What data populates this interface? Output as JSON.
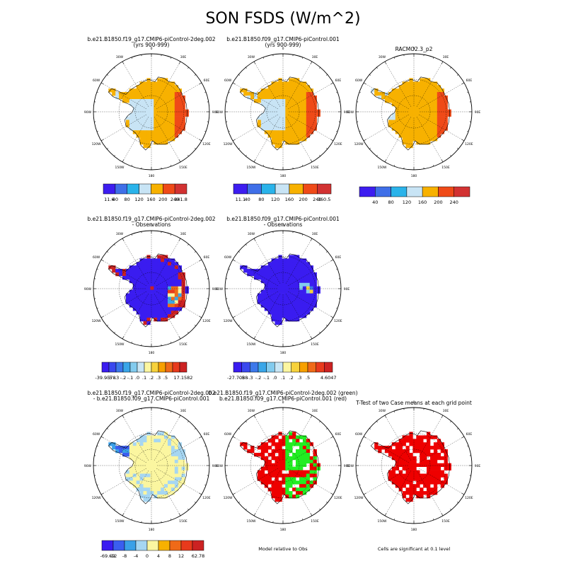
{
  "title": "SON FSDS (W/m^2)",
  "colors": {
    "land_fill": "#ffffff",
    "ocean_fill": "#ffffff",
    "significant": "#ee0000",
    "green": "#22ee22",
    "coast": "#000000"
  },
  "chart_data": [
    {
      "type": "heatmap",
      "title": "b.e21.B1850.f19_g17.CMIP6-piControl-2deg.002",
      "subtitle": "(yrs 900-999)",
      "map": "south-polar-stereographic",
      "lon_labels": [
        "0",
        "30E",
        "60E",
        "90E",
        "120E",
        "150E",
        "180",
        "150W",
        "120W",
        "90W",
        "60W",
        "30W"
      ],
      "colorbar": {
        "min_label": "11.6",
        "max_label": "341.8",
        "ticks": [
          "40",
          "80",
          "120",
          "160",
          "200",
          "240"
        ],
        "colors": [
          "#3d1df0",
          "#3f6fe8",
          "#2ab3ea",
          "#c8e4f5",
          "#f7b100",
          "#ef4a18",
          "#d23232"
        ]
      },
      "pattern": "model"
    },
    {
      "type": "heatmap",
      "title": "b.e21.B1850.f09_g17.CMIP6-piControl.001",
      "subtitle": "(yrs 900-999)",
      "map": "south-polar-stereographic",
      "lon_labels": [
        "0",
        "30E",
        "60E",
        "90E",
        "120E",
        "150E",
        "180",
        "150W",
        "120W",
        "90W",
        "60W",
        "30W"
      ],
      "colorbar": {
        "min_label": "11.1",
        "max_label": "360.5",
        "ticks": [
          "40",
          "80",
          "120",
          "160",
          "200",
          "240"
        ],
        "colors": [
          "#3d1df0",
          "#3f6fe8",
          "#2ab3ea",
          "#c8e4f5",
          "#f7b100",
          "#ef4a18",
          "#d23232"
        ]
      },
      "pattern": "model"
    },
    {
      "type": "heatmap",
      "title": "RACMO2.3_p2",
      "subtitle": "",
      "map": "south-polar-stereographic",
      "lon_labels": [
        "0",
        "30E",
        "60E",
        "90E",
        "120E",
        "150E",
        "180",
        "150W",
        "120W",
        "90W",
        "60W",
        "30W"
      ],
      "colorbar": {
        "min_label": "",
        "max_label": "",
        "ticks": [
          "40",
          "80",
          "120",
          "160",
          "200",
          "240"
        ],
        "colors": [
          "#3d1df0",
          "#3f6fe8",
          "#2ab3ea",
          "#c8e4f5",
          "#f7b100",
          "#ef4a18",
          "#d23232"
        ]
      },
      "pattern": "obs"
    },
    {
      "type": "heatmap",
      "title": "b.e21.B1850.f19_g17.CMIP6-piControl-2deg.002",
      "subtitle": "- Observations",
      "map": "south-polar-stereographic",
      "lon_labels": [
        "0",
        "30E",
        "60E",
        "90E",
        "120E",
        "150E",
        "180",
        "150W",
        "120W",
        "90W",
        "60W",
        "30W"
      ],
      "colorbar": {
        "min_label": "-39.9578",
        "max_label": "17.1582",
        "ticks": [
          "-.5",
          "-.3",
          "-.2",
          "-.1",
          ".0",
          ".1",
          ".2",
          ".3",
          ".5"
        ],
        "colors": [
          "#3a1cf0",
          "#3a48ee",
          "#3c78ea",
          "#3aa6e8",
          "#82cbee",
          "#c8e6f5",
          "#fbf6a0",
          "#f7d23c",
          "#f7a000",
          "#ef6a18",
          "#e83a1c",
          "#cc2222"
        ]
      },
      "pattern": "diff1"
    },
    {
      "type": "heatmap",
      "title": "b.e21.B1850.f09_g17.CMIP6-piControl.001",
      "subtitle": "- Observations",
      "map": "south-polar-stereographic",
      "lon_labels": [
        "0",
        "30E",
        "60E",
        "90E",
        "120E",
        "150E",
        "180",
        "150W",
        "120W",
        "90W",
        "60W",
        "30W"
      ],
      "colorbar": {
        "min_label": "-27.7088",
        "max_label": "4.6047",
        "ticks": [
          "-.5",
          "-.3",
          "-.2",
          "-.1",
          ".0",
          ".1",
          ".2",
          ".3",
          ".5"
        ],
        "colors": [
          "#3a1cf0",
          "#3a48ee",
          "#3c78ea",
          "#3aa6e8",
          "#82cbee",
          "#c8e6f5",
          "#fbf6a0",
          "#f7d23c",
          "#f7a000",
          "#ef6a18",
          "#e83a1c",
          "#cc2222"
        ]
      },
      "pattern": "diff2"
    },
    {
      "type": "heatmap",
      "title": "b.e21.B1850.f19_g17.CMIP6-piControl-2deg.002",
      "subtitle": "- b.e21.B1850.f09_g17.CMIP6-piControl.001",
      "map": "south-polar-stereographic",
      "lon_labels": [
        "0",
        "30E",
        "60E",
        "90E",
        "120E",
        "150E",
        "180",
        "150W",
        "120W",
        "90W",
        "60W",
        "30W"
      ],
      "colorbar": {
        "min_label": "-69.69",
        "max_label": "62.78",
        "ticks": [
          "-12",
          "-8",
          "-4",
          "0",
          "4",
          "8",
          "12"
        ],
        "colors": [
          "#3a1cf0",
          "#3a5ef0",
          "#3aa0e8",
          "#a6d6f2",
          "#fbf6a0",
          "#f7b100",
          "#ef6a18",
          "#e83a1c",
          "#cc2222"
        ]
      },
      "pattern": "casediff"
    },
    {
      "type": "heatmap",
      "title": "b.e21.B1850.f19_g17.CMIP6-piControl-2deg.002 (green)",
      "subtitle": "b.e21.B1850.f09_g17.CMIP6-piControl.001 (red)",
      "map": "south-polar-stereographic",
      "lon_labels": [
        "0",
        "30E",
        "60E",
        "90E",
        "120E",
        "150E",
        "180",
        "150W",
        "120W",
        "90W",
        "60W",
        "30W"
      ],
      "note": "Model relative to Obs",
      "pattern": "redgreen"
    },
    {
      "type": "heatmap",
      "title": "T-Test of two Case means at each grid point",
      "subtitle": "",
      "map": "south-polar-stereographic",
      "lon_labels": [
        "0",
        "30E",
        "60E",
        "90E",
        "120E",
        "150E",
        "180",
        "150W",
        "120W",
        "90W",
        "60W",
        "30W"
      ],
      "note": "Cells are significant at 0.1 level",
      "pattern": "ttest"
    }
  ]
}
